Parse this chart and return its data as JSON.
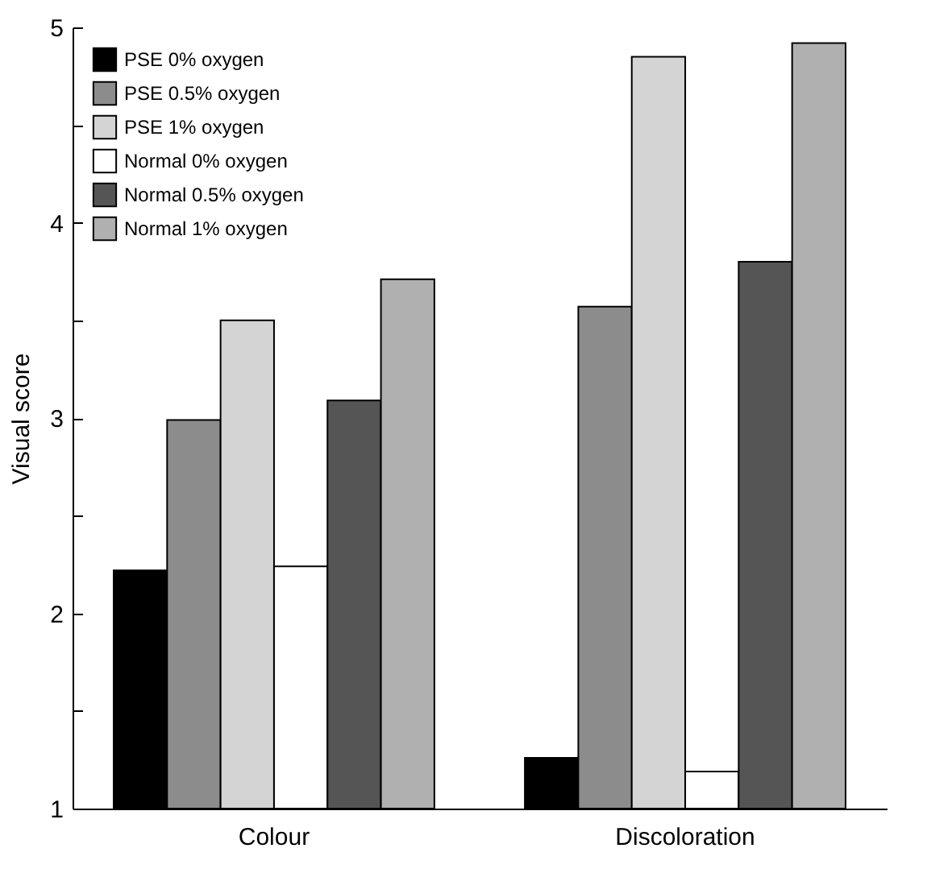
{
  "chart_data": {
    "type": "bar",
    "ylabel": "Visual score",
    "categories": [
      "Colour",
      "Discoloration"
    ],
    "series": [
      {
        "name": "PSE 0% oxygen",
        "color": "#000000",
        "values": [
          2.22,
          1.26
        ]
      },
      {
        "name": "PSE 0.5% oxygen",
        "color": "#8c8c8c",
        "values": [
          2.99,
          3.57
        ]
      },
      {
        "name": "PSE 1% oxygen",
        "color": "#d4d4d4",
        "values": [
          3.5,
          4.85
        ]
      },
      {
        "name": "Normal 0% oxygen",
        "color": "#ffffff",
        "values": [
          2.24,
          1.19
        ]
      },
      {
        "name": "Normal 0.5% oxygen",
        "color": "#555555",
        "values": [
          3.09,
          3.8
        ]
      },
      {
        "name": "Normal 1% oxygen",
        "color": "#b0b0b0",
        "values": [
          3.71,
          4.92
        ]
      }
    ],
    "ylim": [
      1,
      5
    ],
    "yticks": [
      1,
      {
        "value": 1.5,
        "label": null
      },
      2,
      {
        "value": 2.5,
        "label": null
      },
      3,
      {
        "value": 3.5,
        "label": null
      },
      4,
      {
        "value": 4.5,
        "label": null
      },
      5
    ],
    "grid": false,
    "legend": "top left"
  }
}
